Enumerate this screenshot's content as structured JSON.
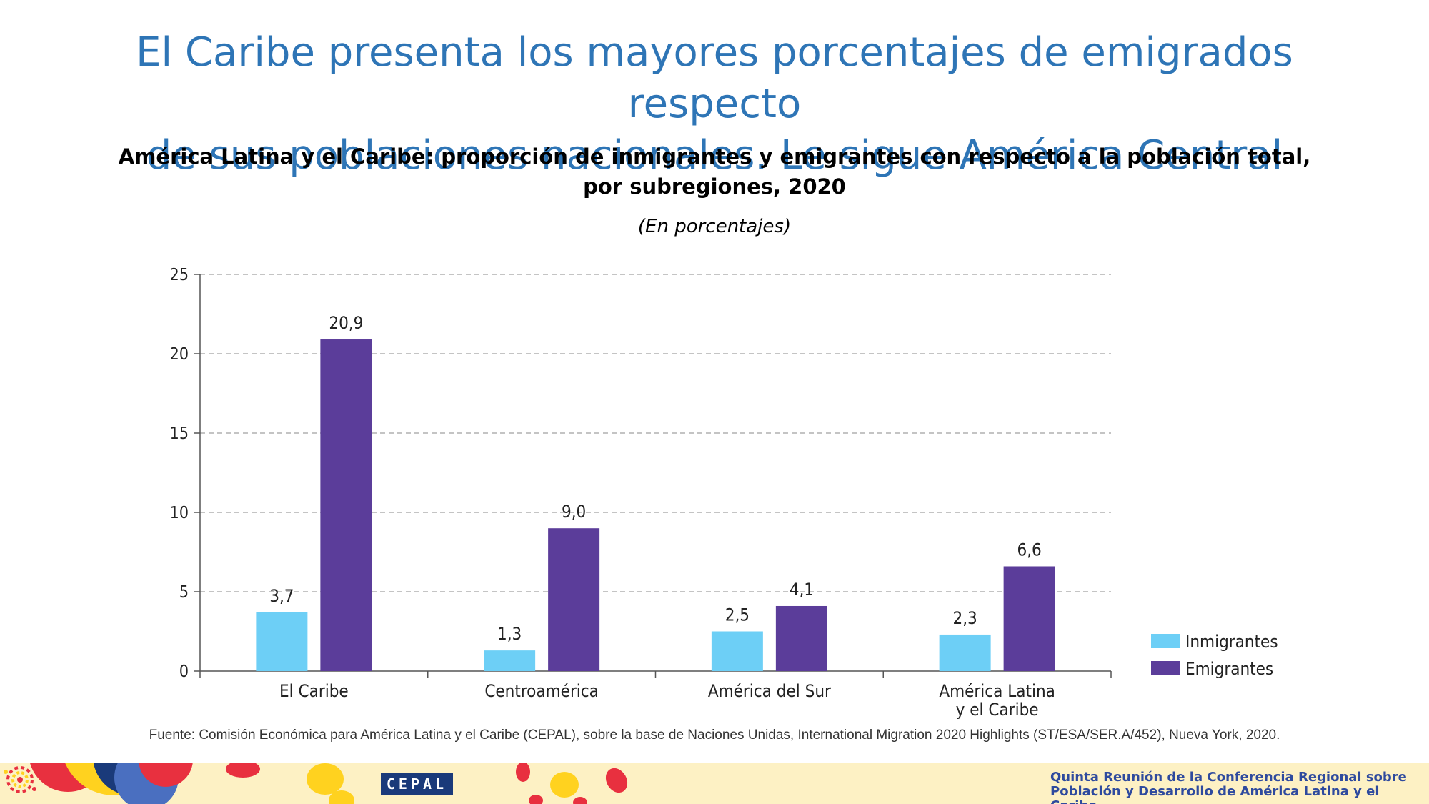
{
  "slide": {
    "title_line1": "El Caribe presenta los mayores porcentajes de emigrados respecto",
    "title_line2": "de sus poblaciones nacionales. Le sigue América Central"
  },
  "chart_data": {
    "type": "bar",
    "title_line1": "América Latina y el Caribe: proporción de inmigrantes y emigrantes con respecto a la población total,",
    "title_line2": "por subregiones, 2020",
    "subtitle": "(En porcentajes)",
    "categories": [
      [
        "El Caribe"
      ],
      [
        "Centroamérica"
      ],
      [
        "América del Sur"
      ],
      [
        "América Latina",
        "y el Caribe"
      ]
    ],
    "series": [
      {
        "name": "Inmigrantes",
        "color": "#6dcff6",
        "values": [
          3.7,
          1.3,
          2.5,
          2.3
        ],
        "labels": [
          "3,7",
          "1,3",
          "2,5",
          "2,3"
        ]
      },
      {
        "name": "Emigrantes",
        "color": "#5b3d9a",
        "values": [
          20.9,
          9.0,
          4.1,
          6.6
        ],
        "labels": [
          "20,9",
          "9,0",
          "4,1",
          "6,6"
        ]
      }
    ],
    "ylim": [
      0,
      25
    ],
    "yticks": [
      0,
      5,
      10,
      15,
      20,
      25
    ],
    "grid": true,
    "legend_position": "right"
  },
  "source": "Fuente: Comisión Económica para América Latina y el Caribe (CEPAL), sobre la base de Naciones Unidas, International Migration 2020 Highlights (ST/ESA/SER.A/452), Nueva York, 2020.",
  "footer": {
    "cepal_logo": "CEPAL",
    "conference_line1": "Quinta Reunión de la Conferencia Regional sobre",
    "conference_line2": "Población y Desarrollo de América Latina y el Caribe",
    "colors": {
      "band": "#fdf1c4",
      "red": "#e8303f",
      "yellow": "#ffd21f",
      "blue": "#1a3a7a",
      "text": "#2e4a9e"
    }
  }
}
